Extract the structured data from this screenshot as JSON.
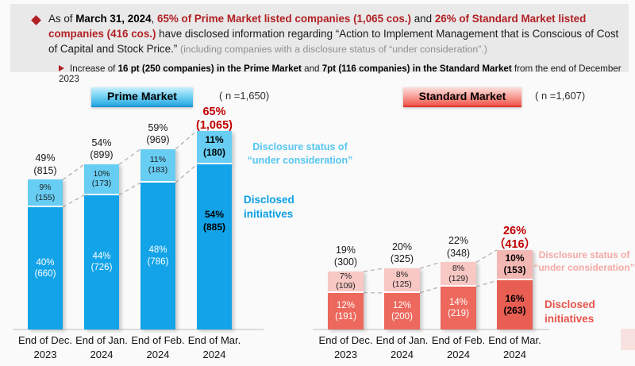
{
  "page": {
    "background": "#FAFAFA"
  },
  "header": {
    "bullet_icon_color": "#B22024",
    "main_segments": [
      {
        "text": "As of ",
        "style": "normal"
      },
      {
        "text": "March 31, 2024",
        "style": "bold"
      },
      {
        "text": ", ",
        "style": "normal"
      },
      {
        "text": "65% of Prime Market listed companies (1,065 cos.)",
        "style": "red-bold"
      },
      {
        "text": " and ",
        "style": "normal"
      },
      {
        "text": "26% of Standard Market listed companies (416 cos.)",
        "style": "red-bold"
      },
      {
        "text": " have disclosed information regarding “Action to Implement Management that is Conscious of Cost of Capital and Stock Price.” ",
        "style": "normal"
      },
      {
        "text": "(including companies with a disclosure status of “under consideration”.)",
        "style": "gray-small"
      }
    ],
    "sub_segments": [
      {
        "text": "Increase of ",
        "style": "normal"
      },
      {
        "text": "16 pt (250 companies) in the Prime Market",
        "style": "bold"
      },
      {
        "text": " and ",
        "style": "normal"
      },
      {
        "text": "7pt (116 companies) in the Standard Market",
        "style": "bold"
      },
      {
        "text": " from the end of December 2023",
        "style": "normal"
      }
    ]
  },
  "chart_data": [
    {
      "type": "bar",
      "stacked": true,
      "market": "Prime Market",
      "n_label": "( n =1,650)",
      "unit": "%",
      "categories": [
        "End of Dec.|2023",
        "End of Jan.|2024",
        "End of Feb.|2024",
        "End of Mar.|2024"
      ],
      "series": [
        {
          "name": "Disclosed initiatives",
          "pct": [
            40,
            44,
            48,
            54
          ],
          "counts": [
            "660",
            "726",
            "786",
            "885"
          ]
        },
        {
          "name": "Disclosure status of “under consideration”",
          "pct": [
            9,
            10,
            11,
            11
          ],
          "counts": [
            "155",
            "173",
            "183",
            "180"
          ]
        }
      ],
      "totals_pct": [
        49,
        54,
        59,
        65
      ],
      "totals_display": [
        [
          "49%",
          "(815)"
        ],
        [
          "54%",
          "(899)"
        ],
        [
          "59%",
          "(969)"
        ],
        [
          "65%",
          "(1,065)"
        ]
      ],
      "highlight_last": true,
      "annotations": {
        "top_label": "Disclosure status of\n“under consideration”",
        "bottom_label": "Disclosed\ninitiatives"
      },
      "colors": {
        "bottom": "#12A3E8",
        "top": "#67CDF3",
        "top_last": "#67CDF3",
        "bottom_last": "#12A3E8",
        "final_total": "#C00000",
        "annotation_top": "#56C6F1",
        "annotation_bottom": "#0CA0E6"
      }
    },
    {
      "type": "bar",
      "stacked": true,
      "market": "Standard Market",
      "n_label": "( n =1,607)",
      "unit": "%",
      "categories": [
        "End of Dec.|2023",
        "End of Jan.|2024",
        "End of Feb.|2024",
        "End of Mar.|2024"
      ],
      "series": [
        {
          "name": "Disclosed initiatives",
          "pct": [
            12,
            12,
            14,
            16
          ],
          "counts": [
            "191",
            "200",
            "219",
            "263"
          ]
        },
        {
          "name": "Disclosure status of “under consideration”",
          "pct": [
            7,
            8,
            8,
            10
          ],
          "counts": [
            "109",
            "125",
            "129",
            "153"
          ]
        }
      ],
      "totals_pct": [
        19,
        20,
        22,
        26
      ],
      "totals_display": [
        [
          "19%",
          "(300)"
        ],
        [
          "20%",
          "(325)"
        ],
        [
          "22%",
          "(348)"
        ],
        [
          "26%",
          "（416）"
        ]
      ],
      "highlight_last": true,
      "annotations": {
        "top_label": "Disclosure status of\n“under consideration”",
        "bottom_label": "Disclosed\ninitiatives"
      },
      "colors": {
        "bottom": "#ED685D",
        "top": "#F8C8C4",
        "top_last": "#F3B8B3",
        "bottom_last": "#E85E52",
        "final_total": "#C00000",
        "annotation_top": "#F4A9A5",
        "annotation_bottom": "#E65349"
      }
    }
  ]
}
